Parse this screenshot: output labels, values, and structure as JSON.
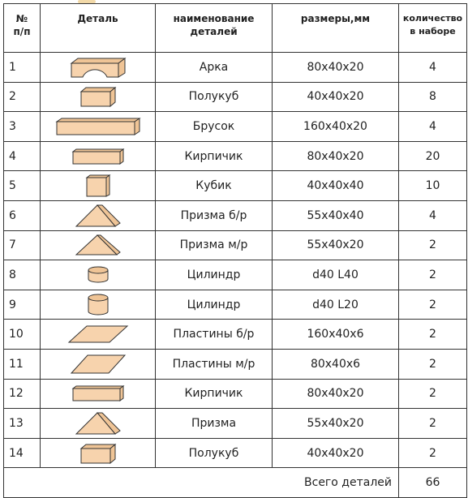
{
  "header": {
    "num": "№\nп/п",
    "detail": "Деталь",
    "name": "наименование\nдеталей",
    "size": "размеры,мм",
    "qty": "количество\nв наборе"
  },
  "rows": [
    {
      "num": "1",
      "shape": "arch-icon",
      "name": "Арка",
      "size": "80x40x20",
      "qty": "4"
    },
    {
      "num": "2",
      "shape": "half-cube-icon",
      "name": "Полукуб",
      "size": "40x40x20",
      "qty": "8"
    },
    {
      "num": "3",
      "shape": "bar-icon",
      "name": "Брусок",
      "size": "160x40x20",
      "qty": "4"
    },
    {
      "num": "4",
      "shape": "brick-icon",
      "name": "Кирпичик",
      "size": "80x40x20",
      "qty": "20"
    },
    {
      "num": "5",
      "shape": "cube-icon",
      "name": "Кубик",
      "size": "40x40x40",
      "qty": "10"
    },
    {
      "num": "6",
      "shape": "prism-large-icon",
      "name": "Призма б/р",
      "size": "55x40x40",
      "qty": "4"
    },
    {
      "num": "7",
      "shape": "prism-small-icon",
      "name": "Призма м/р",
      "size": "55x40x20",
      "qty": "2"
    },
    {
      "num": "8",
      "shape": "cylinder-short-icon",
      "name": "Цилиндр",
      "size": "d40 L40",
      "qty": "2"
    },
    {
      "num": "9",
      "shape": "cylinder-tall-icon",
      "name": "Цилиндр",
      "size": "d40 L20",
      "qty": "2"
    },
    {
      "num": "10",
      "shape": "plate-large-icon",
      "name": "Пластины б/р",
      "size": "160x40x6",
      "qty": "2"
    },
    {
      "num": "11",
      "shape": "plate-small-icon",
      "name": "Пластины м/р",
      "size": "80x40x6",
      "qty": "2"
    },
    {
      "num": "12",
      "shape": "brick-icon",
      "name": "Кирпичик",
      "size": "80x40x20",
      "qty": "2"
    },
    {
      "num": "13",
      "shape": "prism-large-icon",
      "name": "Призма",
      "size": "55x40x20",
      "qty": "2"
    },
    {
      "num": "14",
      "shape": "half-cube-icon",
      "name": "Полукуб",
      "size": "40x40x20",
      "qty": "2"
    }
  ],
  "total": {
    "label": "Всего деталей",
    "value": "66"
  },
  "colors": {
    "block_fill": "#f7d3ad",
    "block_side": "#efc496",
    "stroke": "#333333"
  }
}
